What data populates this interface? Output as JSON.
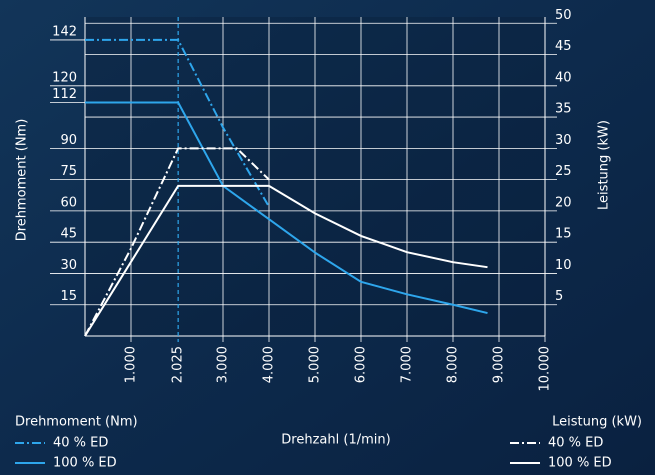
{
  "chart_data": {
    "type": "line",
    "xlabel": "Drehzahl (1/min)",
    "ylabel": "Drehmoment (Nm)",
    "y2label": "Leistung (kW)",
    "xlim": [
      0,
      10000
    ],
    "xticks": [
      {
        "value": 1000,
        "label": "1.000"
      },
      {
        "value": 2025,
        "label": "2.025"
      },
      {
        "value": 3000,
        "label": "3.000"
      },
      {
        "value": 4000,
        "label": "4.000"
      },
      {
        "value": 5000,
        "label": "5.000"
      },
      {
        "value": 6000,
        "label": "6.000"
      },
      {
        "value": 7000,
        "label": "7.000"
      },
      {
        "value": 8000,
        "label": "8.000"
      },
      {
        "value": 9000,
        "label": "9.000"
      },
      {
        "value": 10000,
        "label": "10.000"
      }
    ],
    "ylim": [
      0,
      153
    ],
    "yticks": [
      15,
      30,
      45,
      60,
      75,
      90,
      112,
      120,
      142
    ],
    "y2lim": [
      0,
      51
    ],
    "y2ticks": [
      5,
      10,
      15,
      20,
      25,
      30,
      35,
      40,
      45,
      50
    ],
    "grid": true,
    "series": [
      {
        "name": "40 % ED",
        "color": "#2ea6ec",
        "dash": "dashdot",
        "x": [
          0,
          2025,
          3000,
          4000
        ],
        "values": [
          142,
          142,
          100,
          62
        ]
      },
      {
        "name": "100 % ED",
        "color": "#2ea6ec",
        "dash": "solid",
        "x": [
          0,
          2025,
          3000,
          4000,
          5000,
          6000,
          7000,
          8000,
          8750
        ],
        "values": [
          112,
          112,
          72,
          56,
          40,
          26,
          20,
          15,
          11
        ]
      },
      {
        "name": "40 % ED",
        "color": "#ffffff",
        "dash": "dashdot",
        "axis": "y2",
        "x": [
          0,
          1000,
          2025,
          3300,
          4000
        ],
        "values": [
          0,
          14,
          30,
          30,
          25
        ]
      },
      {
        "name": "100 % ED",
        "color": "#ffffff",
        "dash": "solid",
        "axis": "y2",
        "x": [
          0,
          2025,
          4000,
          5000,
          6000,
          7000,
          8000,
          8750
        ],
        "values": [
          0,
          24,
          24,
          19.6,
          16,
          13.4,
          11.8,
          11
        ]
      }
    ]
  }
}
